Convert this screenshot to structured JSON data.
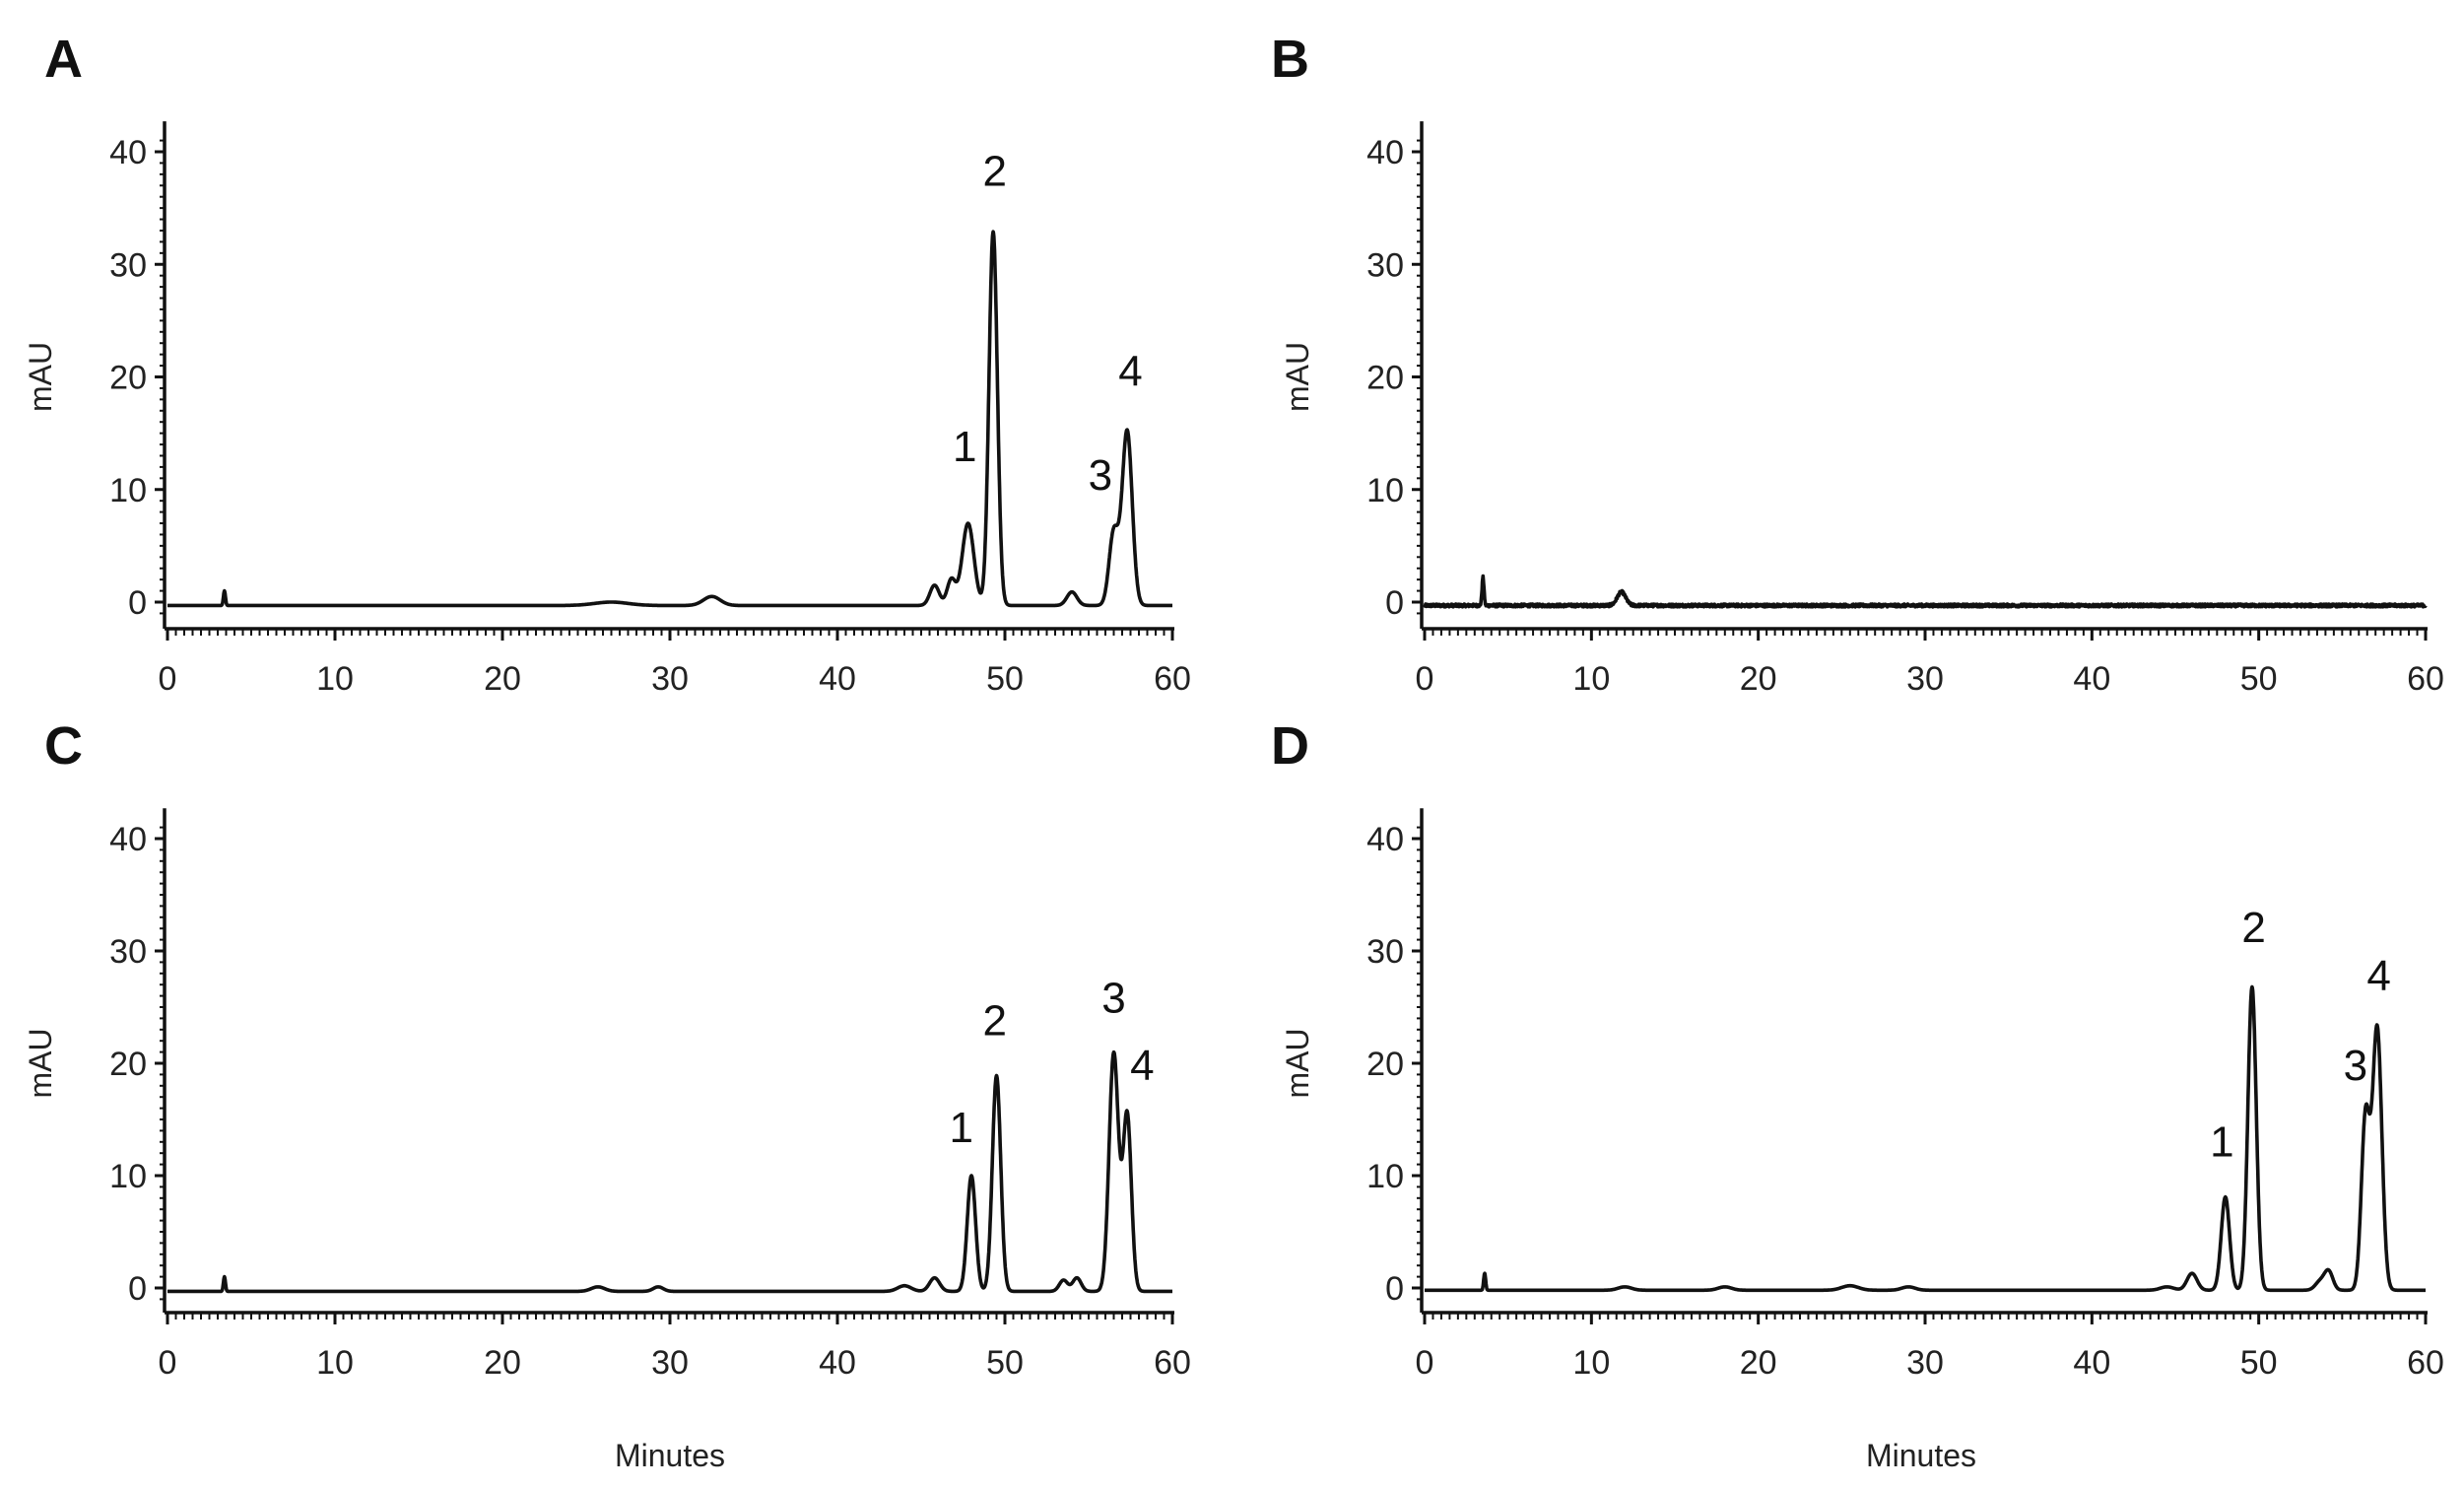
{
  "xlabel": "Minutes",
  "chart_data": [
    {
      "type": "line",
      "panel": "A",
      "ylabel": "mAU",
      "xlim": [
        0,
        60
      ],
      "ylim": [
        -2,
        42
      ],
      "xticks": [
        0,
        10,
        20,
        30,
        40,
        50,
        60
      ],
      "yticks": [
        0,
        10,
        20,
        30,
        40
      ],
      "baseline": -0.3,
      "peaks": [
        {
          "x": 3.4,
          "h": 1.3,
          "w": 0.06
        },
        {
          "x": 26.5,
          "h": 0.3,
          "w": 1.0
        },
        {
          "x": 32.5,
          "h": 0.8,
          "w": 0.5
        },
        {
          "x": 45.8,
          "h": 1.8,
          "w": 0.28
        },
        {
          "x": 46.8,
          "h": 2.3,
          "w": 0.25
        },
        {
          "x": 47.8,
          "h": 7.3,
          "w": 0.35
        },
        {
          "x": 49.3,
          "h": 33.2,
          "w": 0.25
        },
        {
          "x": 54.0,
          "h": 1.2,
          "w": 0.3
        },
        {
          "x": 56.5,
          "h": 6.5,
          "w": 0.28
        },
        {
          "x": 57.3,
          "h": 15.5,
          "w": 0.3
        }
      ],
      "labels": [
        {
          "text": "1",
          "x": 47.6,
          "y": 12.5
        },
        {
          "text": "2",
          "x": 49.4,
          "y": 37.0
        },
        {
          "text": "3",
          "x": 55.7,
          "y": 10.0
        },
        {
          "text": "4",
          "x": 57.5,
          "y": 19.2
        }
      ]
    },
    {
      "type": "line",
      "panel": "B",
      "ylabel": "mAU",
      "xlim": [
        0,
        60
      ],
      "ylim": [
        -2,
        42
      ],
      "xticks": [
        0,
        10,
        20,
        30,
        40,
        50,
        60
      ],
      "yticks": [
        0,
        10,
        20,
        30,
        40
      ],
      "baseline": -0.3,
      "noise": 0.25,
      "peaks": [
        {
          "x": 3.5,
          "h": 2.5,
          "w": 0.06
        },
        {
          "x": 11.8,
          "h": 1.2,
          "w": 0.25
        }
      ],
      "labels": []
    },
    {
      "type": "line",
      "panel": "C",
      "ylabel": "mAU",
      "xlim": [
        0,
        60
      ],
      "ylim": [
        -2,
        42
      ],
      "xticks": [
        0,
        10,
        20,
        30,
        40,
        50,
        60
      ],
      "yticks": [
        0,
        10,
        20,
        30,
        40
      ],
      "baseline": -0.3,
      "peaks": [
        {
          "x": 3.4,
          "h": 1.3,
          "w": 0.06
        },
        {
          "x": 25.7,
          "h": 0.4,
          "w": 0.4
        },
        {
          "x": 29.3,
          "h": 0.4,
          "w": 0.3
        },
        {
          "x": 44.0,
          "h": 0.5,
          "w": 0.4
        },
        {
          "x": 45.8,
          "h": 1.2,
          "w": 0.3
        },
        {
          "x": 48.0,
          "h": 10.3,
          "w": 0.25
        },
        {
          "x": 49.5,
          "h": 19.2,
          "w": 0.25
        },
        {
          "x": 53.5,
          "h": 1.0,
          "w": 0.25
        },
        {
          "x": 54.3,
          "h": 1.2,
          "w": 0.25
        },
        {
          "x": 56.5,
          "h": 21.2,
          "w": 0.28
        },
        {
          "x": 57.3,
          "h": 15.7,
          "w": 0.25
        }
      ],
      "labels": [
        {
          "text": "1",
          "x": 47.4,
          "y": 13.0
        },
        {
          "text": "2",
          "x": 49.4,
          "y": 22.5
        },
        {
          "text": "3",
          "x": 56.5,
          "y": 24.5
        },
        {
          "text": "4",
          "x": 58.2,
          "y": 18.5
        }
      ]
    },
    {
      "type": "line",
      "panel": "D",
      "ylabel": "mAU",
      "xlim": [
        0,
        60
      ],
      "ylim": [
        -2,
        42
      ],
      "xticks": [
        0,
        10,
        20,
        30,
        40,
        50,
        60
      ],
      "yticks": [
        0,
        10,
        20,
        30,
        40
      ],
      "baseline": -0.2,
      "peaks": [
        {
          "x": 3.6,
          "h": 1.5,
          "w": 0.06
        },
        {
          "x": 12.0,
          "h": 0.3,
          "w": 0.4
        },
        {
          "x": 18.0,
          "h": 0.3,
          "w": 0.4
        },
        {
          "x": 25.5,
          "h": 0.4,
          "w": 0.5
        },
        {
          "x": 29.0,
          "h": 0.3,
          "w": 0.4
        },
        {
          "x": 44.5,
          "h": 0.3,
          "w": 0.4
        },
        {
          "x": 46.0,
          "h": 1.5,
          "w": 0.3
        },
        {
          "x": 48.0,
          "h": 8.3,
          "w": 0.25
        },
        {
          "x": 49.6,
          "h": 27.0,
          "w": 0.25
        },
        {
          "x": 53.7,
          "h": 0.8,
          "w": 0.3
        },
        {
          "x": 54.2,
          "h": 1.6,
          "w": 0.25
        },
        {
          "x": 56.4,
          "h": 15.3,
          "w": 0.25
        },
        {
          "x": 57.1,
          "h": 23.3,
          "w": 0.28
        }
      ],
      "labels": [
        {
          "text": "1",
          "x": 47.8,
          "y": 11.7
        },
        {
          "text": "2",
          "x": 49.7,
          "y": 30.8
        },
        {
          "text": "3",
          "x": 55.8,
          "y": 18.5
        },
        {
          "text": "4",
          "x": 57.2,
          "y": 26.5
        }
      ]
    }
  ]
}
